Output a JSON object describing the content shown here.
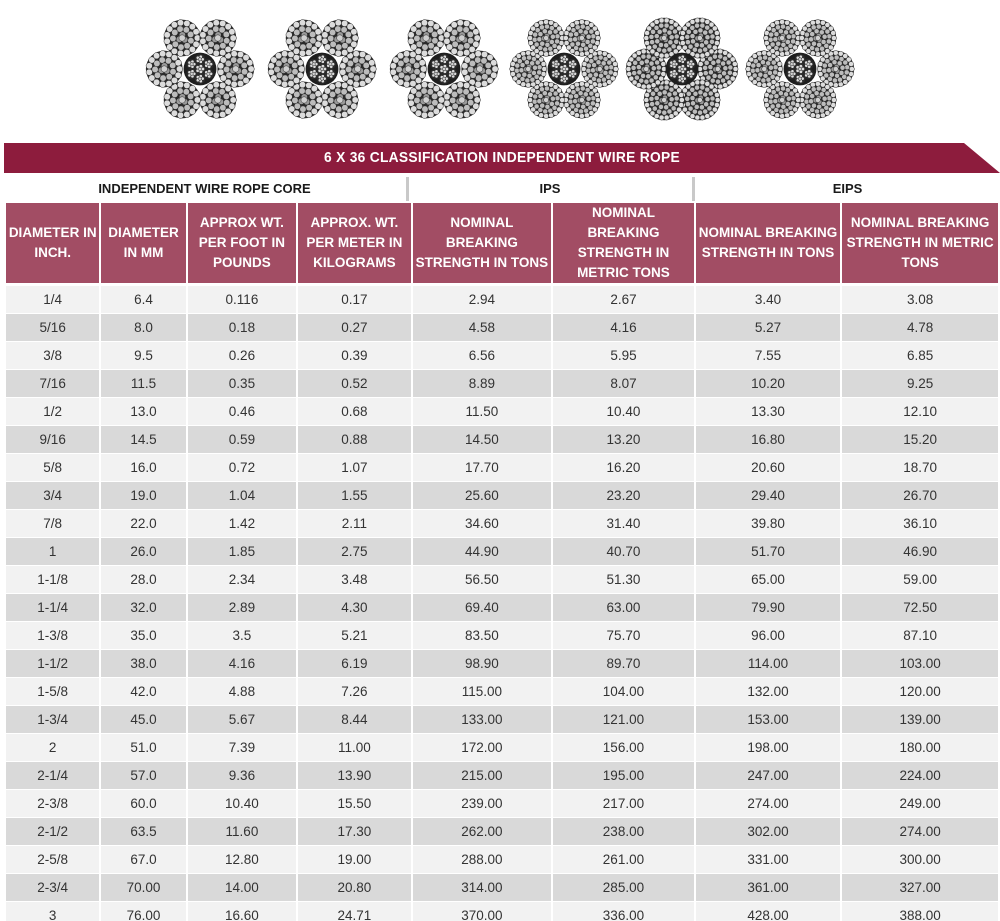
{
  "banner": {
    "title": "6 X 36 CLASSIFICATION INDEPENDENT WIRE ROPE",
    "color": "#8d1c3d"
  },
  "images": [
    {
      "name": "rope-cross-section-1"
    },
    {
      "name": "rope-cross-section-2"
    },
    {
      "name": "rope-cross-section-3"
    },
    {
      "name": "rope-cross-section-4"
    },
    {
      "name": "rope-cross-section-5"
    },
    {
      "name": "rope-cross-section-6"
    }
  ],
  "groups": {
    "core": "INDEPENDENT WIRE ROPE CORE",
    "ips": "IPS",
    "eips": "EIPS"
  },
  "columns": [
    "DIAMETER IN INCH.",
    "DIAMETER IN MM",
    "APPROX WT. PER FOOT IN POUNDS",
    "APPROX. WT. PER METER IN KILOGRAMS",
    "NOMINAL BREAKING STRENGTH IN TONS",
    "NOMINAL BREAKING STRENGTH IN METRIC TONS",
    "NOMINAL BREAKING STRENGTH IN TONS",
    "NOMINAL BREAKING STRENGTH IN METRIC TONS"
  ],
  "header_color": "#a24d64",
  "rows": [
    [
      "1/4",
      "6.4",
      "0.116",
      "0.17",
      "2.94",
      "2.67",
      "3.40",
      "3.08"
    ],
    [
      "5/16",
      "8.0",
      "0.18",
      "0.27",
      "4.58",
      "4.16",
      "5.27",
      "4.78"
    ],
    [
      "3/8",
      "9.5",
      "0.26",
      "0.39",
      "6.56",
      "5.95",
      "7.55",
      "6.85"
    ],
    [
      "7/16",
      "11.5",
      "0.35",
      "0.52",
      "8.89",
      "8.07",
      "10.20",
      "9.25"
    ],
    [
      "1/2",
      "13.0",
      "0.46",
      "0.68",
      "11.50",
      "10.40",
      "13.30",
      "12.10"
    ],
    [
      "9/16",
      "14.5",
      "0.59",
      "0.88",
      "14.50",
      "13.20",
      "16.80",
      "15.20"
    ],
    [
      "5/8",
      "16.0",
      "0.72",
      "1.07",
      "17.70",
      "16.20",
      "20.60",
      "18.70"
    ],
    [
      "3/4",
      "19.0",
      "1.04",
      "1.55",
      "25.60",
      "23.20",
      "29.40",
      "26.70"
    ],
    [
      "7/8",
      "22.0",
      "1.42",
      "2.11",
      "34.60",
      "31.40",
      "39.80",
      "36.10"
    ],
    [
      "1",
      "26.0",
      "1.85",
      "2.75",
      "44.90",
      "40.70",
      "51.70",
      "46.90"
    ],
    [
      "1-1/8",
      "28.0",
      "2.34",
      "3.48",
      "56.50",
      "51.30",
      "65.00",
      "59.00"
    ],
    [
      "1-1/4",
      "32.0",
      "2.89",
      "4.30",
      "69.40",
      "63.00",
      "79.90",
      "72.50"
    ],
    [
      "1-3/8",
      "35.0",
      "3.5",
      "5.21",
      "83.50",
      "75.70",
      "96.00",
      "87.10"
    ],
    [
      "1-1/2",
      "38.0",
      "4.16",
      "6.19",
      "98.90",
      "89.70",
      "114.00",
      "103.00"
    ],
    [
      "1-5/8",
      "42.0",
      "4.88",
      "7.26",
      "115.00",
      "104.00",
      "132.00",
      "120.00"
    ],
    [
      "1-3/4",
      "45.0",
      "5.67",
      "8.44",
      "133.00",
      "121.00",
      "153.00",
      "139.00"
    ],
    [
      "2",
      "51.0",
      "7.39",
      "11.00",
      "172.00",
      "156.00",
      "198.00",
      "180.00"
    ],
    [
      "2-1/4",
      "57.0",
      "9.36",
      "13.90",
      "215.00",
      "195.00",
      "247.00",
      "224.00"
    ],
    [
      "2-3/8",
      "60.0",
      "10.40",
      "15.50",
      "239.00",
      "217.00",
      "274.00",
      "249.00"
    ],
    [
      "2-1/2",
      "63.5",
      "11.60",
      "17.30",
      "262.00",
      "238.00",
      "302.00",
      "274.00"
    ],
    [
      "2-5/8",
      "67.0",
      "12.80",
      "19.00",
      "288.00",
      "261.00",
      "331.00",
      "300.00"
    ],
    [
      "2-3/4",
      "70.00",
      "14.00",
      "20.80",
      "314.00",
      "285.00",
      "361.00",
      "327.00"
    ],
    [
      "3",
      "76.00",
      "16.60",
      "24.71",
      "370.00",
      "336.00",
      "428.00",
      "388.00"
    ]
  ]
}
